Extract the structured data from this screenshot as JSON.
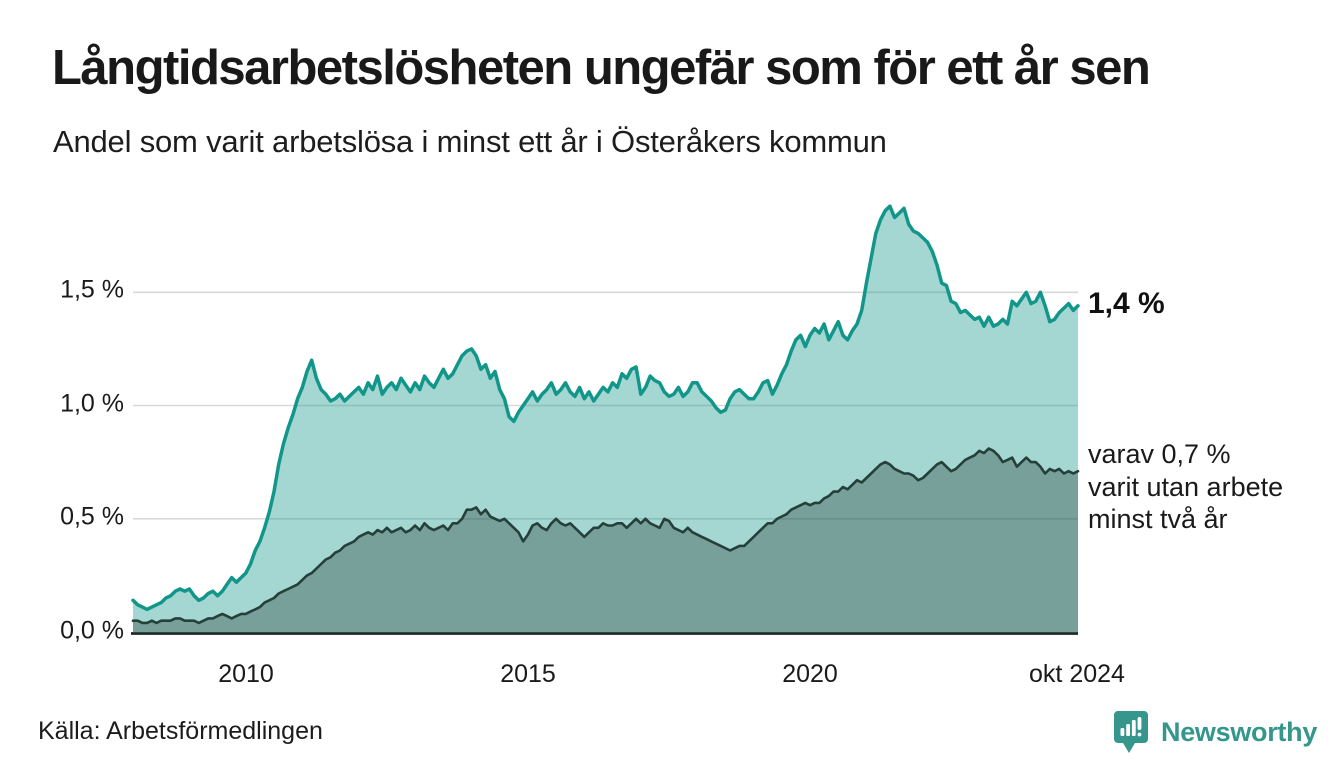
{
  "header": {
    "title": "Långtidsarbetslösheten ungefär som för ett år sen",
    "subtitle": "Andel som varit arbetslösa i minst ett år i Österåkers kommun"
  },
  "annotations": {
    "latest_value": "1,4 %",
    "series2_line1": "varav 0,7 %",
    "series2_line2": "varit utan arbete",
    "series2_line3": "minst två år"
  },
  "footer": {
    "source": "Källa: Arbetsförmedlingen",
    "brand": "Newsworthy"
  },
  "colors": {
    "accent_teal": "#12968a",
    "dark_green": "#25403a",
    "gridline": "#d9d9d9",
    "axis": "#1c2a26",
    "brand_teal": "#35968b",
    "text": "#191919"
  },
  "chart_data": {
    "type": "area",
    "title": "Långtidsarbetslösheten ungefär som för ett år sen",
    "subtitle": "Andel som varit arbetslösa i minst ett år i Österåkers kommun",
    "x_unit": "month",
    "x_start": "2008-01",
    "x_end": "2024-10",
    "ylim": [
      0,
      1.95
    ],
    "grid": "horizontal",
    "legend_position": "right-annotations",
    "y_grid_values": [
      0.5,
      1.0,
      1.5
    ],
    "y_tick_labels": [
      "0,0 %",
      "0,5 %",
      "1,0 %",
      "1,5 %"
    ],
    "y_tick_values": [
      0,
      0.5,
      1.0,
      1.5
    ],
    "x_tick_labels": [
      "2010",
      "2015",
      "2020",
      "okt 2024"
    ],
    "x_tick_month_indices": [
      24,
      84,
      144,
      201
    ],
    "series": [
      {
        "name": "Andel som varit arbetslösa minst ett år",
        "end_label": "1,4 %",
        "latest_value_pct": 1.4,
        "stroke": "#12968a",
        "stroke_width": 3.5,
        "fill": "rgba(18,150,138,0.38)",
        "values": [
          0.14,
          0.12,
          0.11,
          0.1,
          0.11,
          0.12,
          0.13,
          0.15,
          0.16,
          0.18,
          0.19,
          0.18,
          0.19,
          0.16,
          0.14,
          0.15,
          0.17,
          0.18,
          0.16,
          0.18,
          0.21,
          0.24,
          0.22,
          0.24,
          0.26,
          0.3,
          0.36,
          0.4,
          0.46,
          0.53,
          0.62,
          0.74,
          0.83,
          0.9,
          0.96,
          1.03,
          1.08,
          1.15,
          1.2,
          1.12,
          1.07,
          1.05,
          1.02,
          1.03,
          1.05,
          1.02,
          1.04,
          1.06,
          1.08,
          1.05,
          1.1,
          1.07,
          1.13,
          1.05,
          1.08,
          1.1,
          1.07,
          1.12,
          1.09,
          1.06,
          1.1,
          1.07,
          1.13,
          1.1,
          1.08,
          1.12,
          1.16,
          1.12,
          1.14,
          1.18,
          1.22,
          1.24,
          1.25,
          1.22,
          1.16,
          1.18,
          1.12,
          1.15,
          1.07,
          1.03,
          0.95,
          0.93,
          0.97,
          1.0,
          1.03,
          1.06,
          1.02,
          1.05,
          1.07,
          1.1,
          1.05,
          1.07,
          1.1,
          1.06,
          1.04,
          1.08,
          1.03,
          1.06,
          1.02,
          1.05,
          1.08,
          1.06,
          1.1,
          1.08,
          1.14,
          1.12,
          1.16,
          1.17,
          1.05,
          1.08,
          1.13,
          1.11,
          1.1,
          1.06,
          1.04,
          1.05,
          1.08,
          1.04,
          1.06,
          1.1,
          1.1,
          1.06,
          1.04,
          1.02,
          0.99,
          0.97,
          0.98,
          1.03,
          1.06,
          1.07,
          1.05,
          1.03,
          1.03,
          1.06,
          1.1,
          1.11,
          1.05,
          1.09,
          1.14,
          1.18,
          1.24,
          1.29,
          1.31,
          1.26,
          1.31,
          1.34,
          1.32,
          1.36,
          1.29,
          1.33,
          1.37,
          1.31,
          1.29,
          1.33,
          1.36,
          1.42,
          1.54,
          1.65,
          1.76,
          1.82,
          1.86,
          1.88,
          1.83,
          1.85,
          1.87,
          1.8,
          1.77,
          1.76,
          1.74,
          1.72,
          1.68,
          1.62,
          1.54,
          1.53,
          1.46,
          1.45,
          1.41,
          1.42,
          1.4,
          1.38,
          1.39,
          1.35,
          1.39,
          1.35,
          1.36,
          1.38,
          1.36,
          1.46,
          1.44,
          1.47,
          1.5,
          1.45,
          1.46,
          1.5,
          1.44,
          1.37,
          1.38,
          1.41,
          1.43,
          1.45,
          1.42,
          1.44
        ]
      },
      {
        "name": "varav utan arbete minst två år",
        "end_label": "varav 0,7 % varit utan arbete minst två år",
        "latest_value_pct": 0.7,
        "stroke": "#25403a",
        "stroke_width": 2.6,
        "fill": "rgba(31,56,51,0.34)",
        "values": [
          0.05,
          0.05,
          0.04,
          0.04,
          0.05,
          0.04,
          0.05,
          0.05,
          0.05,
          0.06,
          0.06,
          0.05,
          0.05,
          0.05,
          0.04,
          0.05,
          0.06,
          0.06,
          0.07,
          0.08,
          0.07,
          0.06,
          0.07,
          0.08,
          0.08,
          0.09,
          0.1,
          0.11,
          0.13,
          0.14,
          0.15,
          0.17,
          0.18,
          0.19,
          0.2,
          0.21,
          0.23,
          0.25,
          0.26,
          0.28,
          0.3,
          0.32,
          0.33,
          0.35,
          0.36,
          0.38,
          0.39,
          0.4,
          0.42,
          0.43,
          0.44,
          0.43,
          0.45,
          0.44,
          0.46,
          0.44,
          0.45,
          0.46,
          0.44,
          0.45,
          0.47,
          0.45,
          0.48,
          0.46,
          0.45,
          0.46,
          0.47,
          0.45,
          0.48,
          0.48,
          0.5,
          0.54,
          0.54,
          0.55,
          0.52,
          0.54,
          0.51,
          0.5,
          0.49,
          0.5,
          0.48,
          0.46,
          0.44,
          0.4,
          0.43,
          0.47,
          0.48,
          0.46,
          0.45,
          0.48,
          0.5,
          0.48,
          0.47,
          0.48,
          0.46,
          0.44,
          0.42,
          0.44,
          0.46,
          0.46,
          0.48,
          0.47,
          0.47,
          0.48,
          0.48,
          0.46,
          0.48,
          0.5,
          0.48,
          0.5,
          0.48,
          0.47,
          0.46,
          0.5,
          0.49,
          0.46,
          0.45,
          0.44,
          0.46,
          0.44,
          0.43,
          0.42,
          0.41,
          0.4,
          0.39,
          0.38,
          0.37,
          0.36,
          0.37,
          0.38,
          0.38,
          0.4,
          0.42,
          0.44,
          0.46,
          0.48,
          0.48,
          0.5,
          0.51,
          0.52,
          0.54,
          0.55,
          0.56,
          0.57,
          0.56,
          0.57,
          0.57,
          0.59,
          0.6,
          0.62,
          0.62,
          0.64,
          0.63,
          0.65,
          0.67,
          0.66,
          0.68,
          0.7,
          0.72,
          0.74,
          0.75,
          0.74,
          0.72,
          0.71,
          0.7,
          0.7,
          0.69,
          0.67,
          0.68,
          0.7,
          0.72,
          0.74,
          0.75,
          0.73,
          0.71,
          0.72,
          0.74,
          0.76,
          0.77,
          0.78,
          0.8,
          0.79,
          0.81,
          0.8,
          0.78,
          0.75,
          0.76,
          0.77,
          0.73,
          0.75,
          0.77,
          0.75,
          0.75,
          0.73,
          0.7,
          0.72,
          0.71,
          0.72,
          0.7,
          0.71,
          0.7,
          0.71
        ]
      }
    ]
  }
}
